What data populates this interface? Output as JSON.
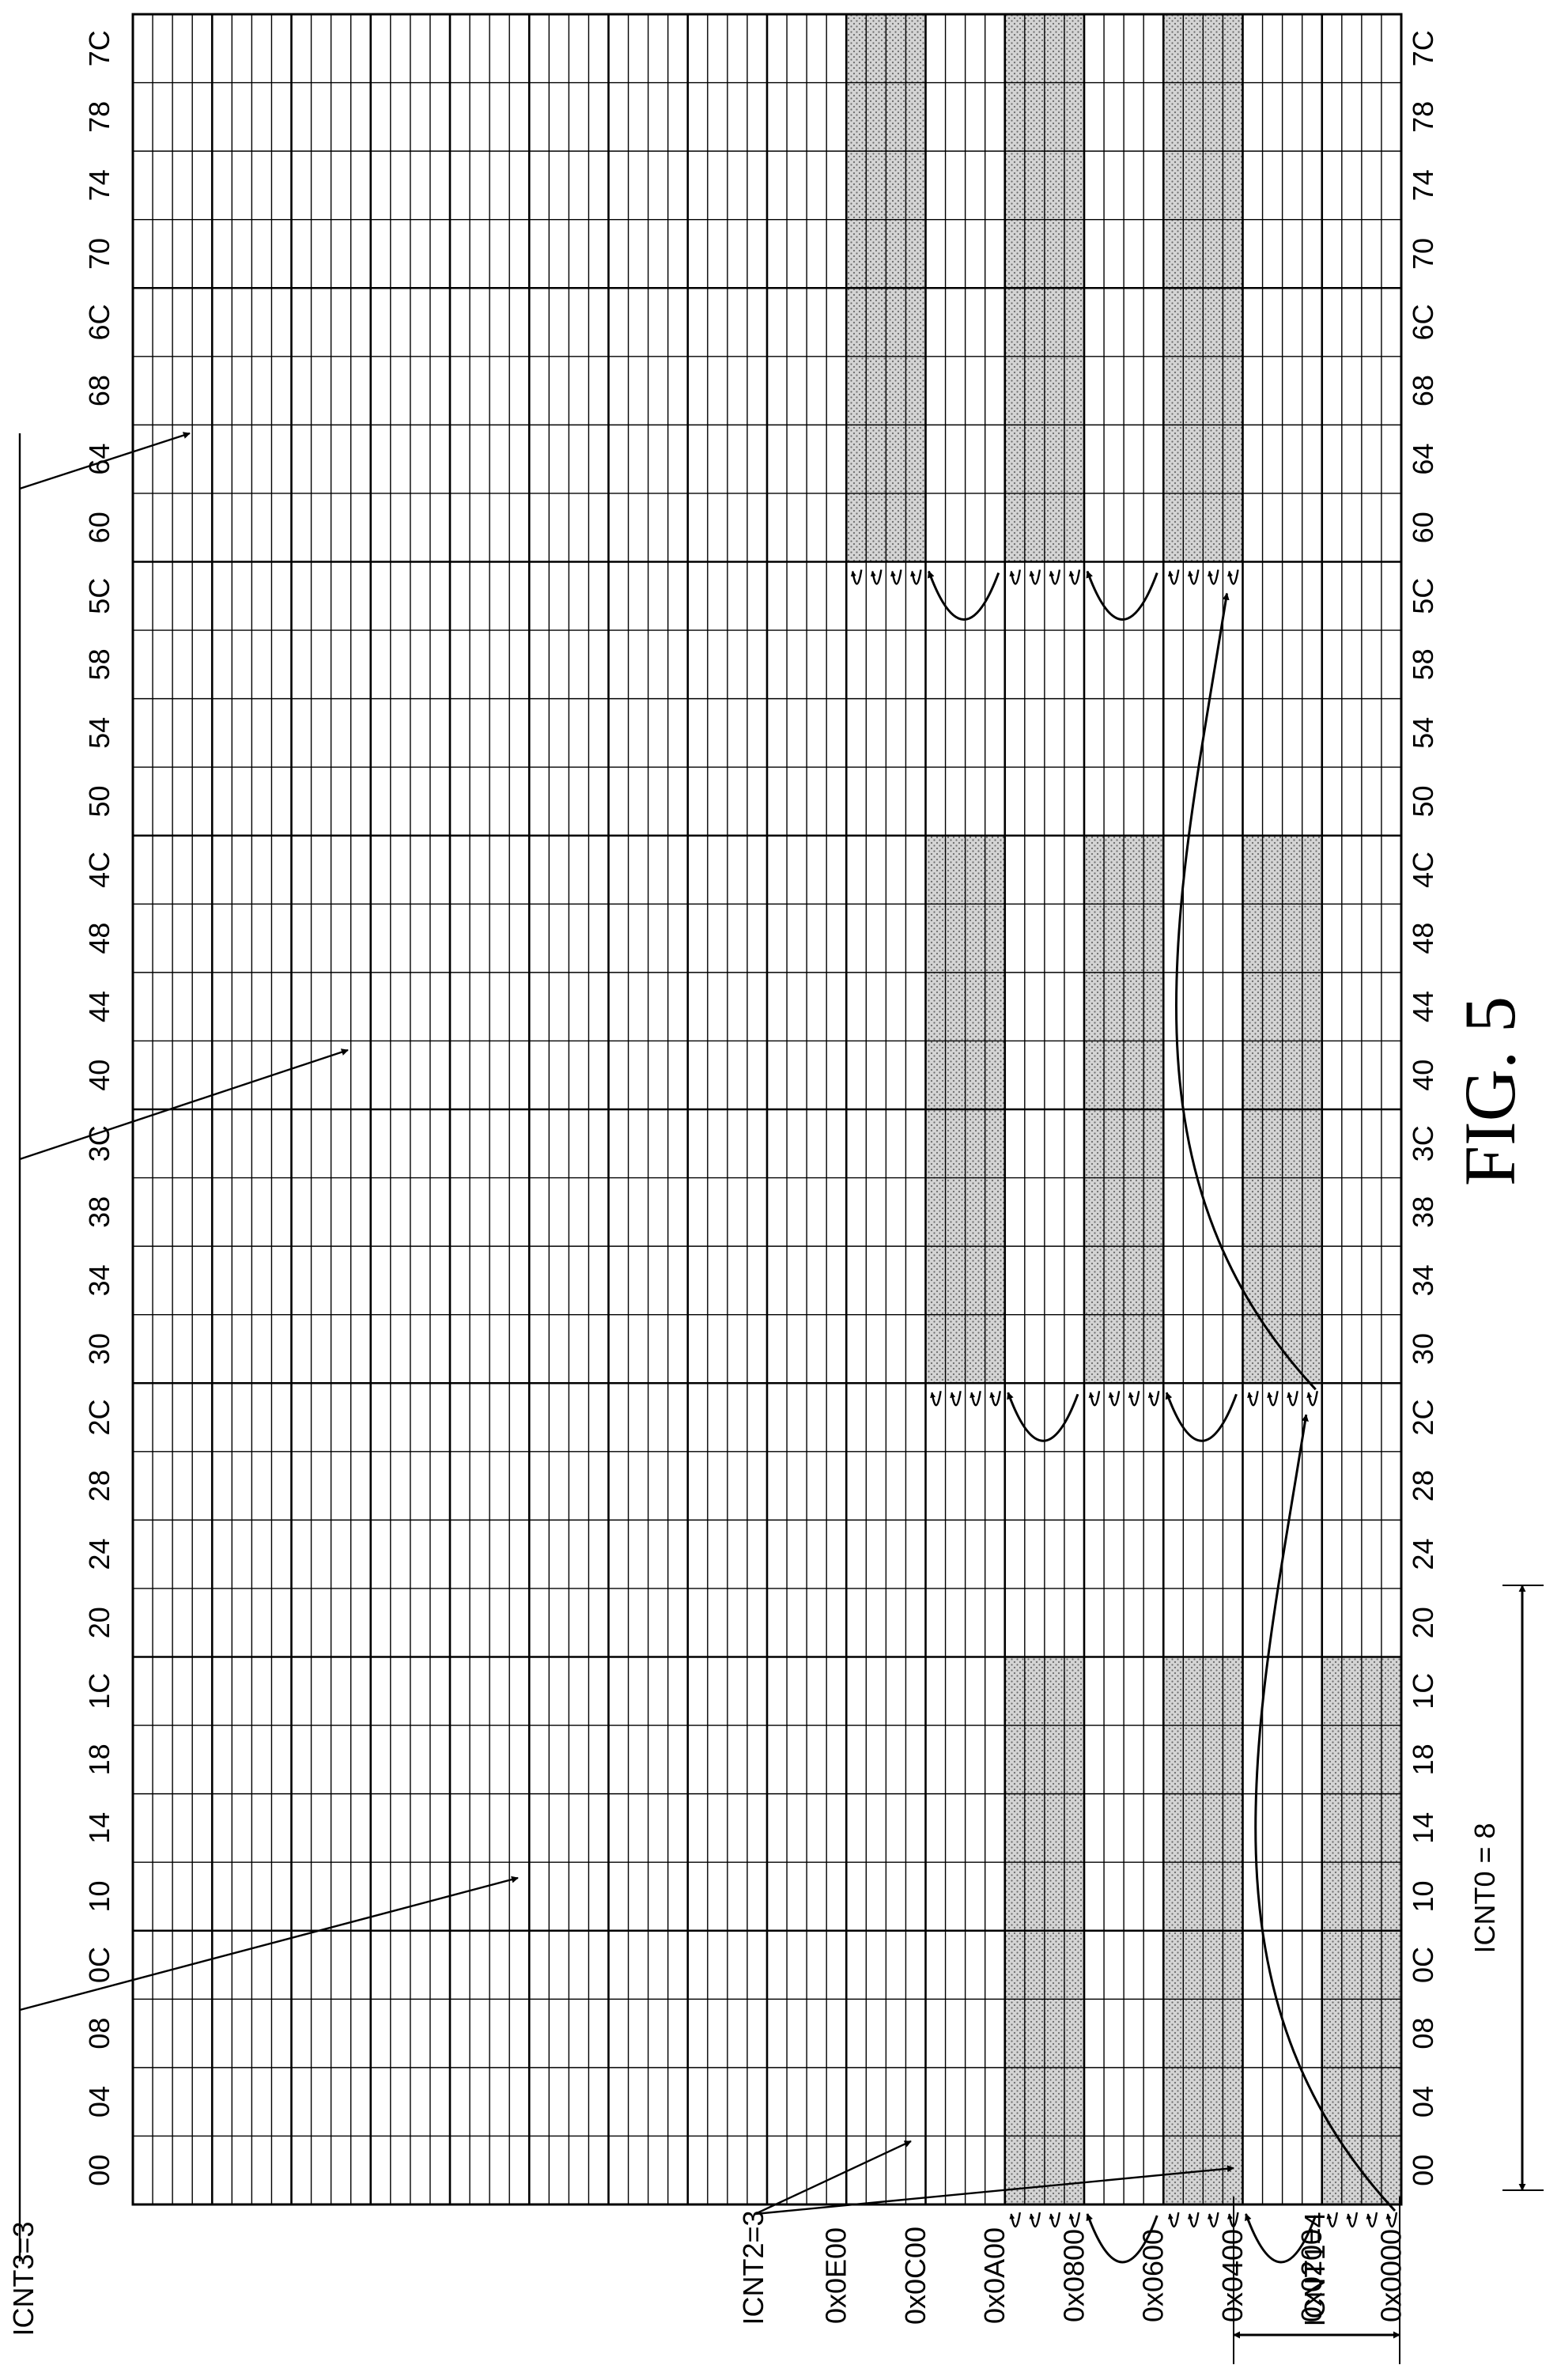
{
  "figure_label": "FIG. 5",
  "address_labels": [
    "0x0000",
    "0x0200",
    "0x0400",
    "0x0600",
    "0x0800",
    "0x0A00",
    "0x0C00",
    "0x0E00"
  ],
  "column_labels": [
    "00",
    "04",
    "08",
    "0C",
    "10",
    "14",
    "18",
    "1C",
    "20",
    "24",
    "28",
    "2C",
    "30",
    "34",
    "38",
    "3C",
    "40",
    "44",
    "48",
    "4C",
    "50",
    "54",
    "58",
    "5C",
    "60",
    "64",
    "68",
    "6C",
    "70",
    "74",
    "78",
    "7C"
  ],
  "annotations": {
    "icnt0": "ICNT0 = 8",
    "icnt1": "ICNT1=4",
    "icnt2": "ICNT2=3",
    "icnt3": "ICNT3=3"
  },
  "shaded_blocks": [
    {
      "dim3": 0,
      "dim2": 0,
      "start_address": "0x0000",
      "start_column": "00",
      "rows": 4,
      "columns": 8
    },
    {
      "dim3": 0,
      "dim2": 1,
      "start_address": "0x0400",
      "start_column": "00",
      "rows": 4,
      "columns": 8
    },
    {
      "dim3": 0,
      "dim2": 2,
      "start_address": "0x0800",
      "start_column": "00",
      "rows": 4,
      "columns": 8
    },
    {
      "dim3": 1,
      "dim2": 0,
      "start_address": "0x0200",
      "start_column": "30",
      "rows": 4,
      "columns": 8
    },
    {
      "dim3": 1,
      "dim2": 1,
      "start_address": "0x0600",
      "start_column": "30",
      "rows": 4,
      "columns": 8
    },
    {
      "dim3": 1,
      "dim2": 2,
      "start_address": "0x0A00",
      "start_column": "30",
      "rows": 4,
      "columns": 8
    },
    {
      "dim3": 2,
      "dim2": 0,
      "start_address": "0x0400",
      "start_column": "60",
      "rows": 4,
      "columns": 8
    },
    {
      "dim3": 2,
      "dim2": 1,
      "start_address": "0x0800",
      "start_column": "60",
      "rows": 4,
      "columns": 8
    },
    {
      "dim3": 2,
      "dim2": 2,
      "start_address": "0x0C00",
      "start_column": "60",
      "rows": 4,
      "columns": 8
    }
  ],
  "colors": {
    "line": "#000000",
    "shade": "#d4d4d4",
    "background": "#ffffff"
  }
}
